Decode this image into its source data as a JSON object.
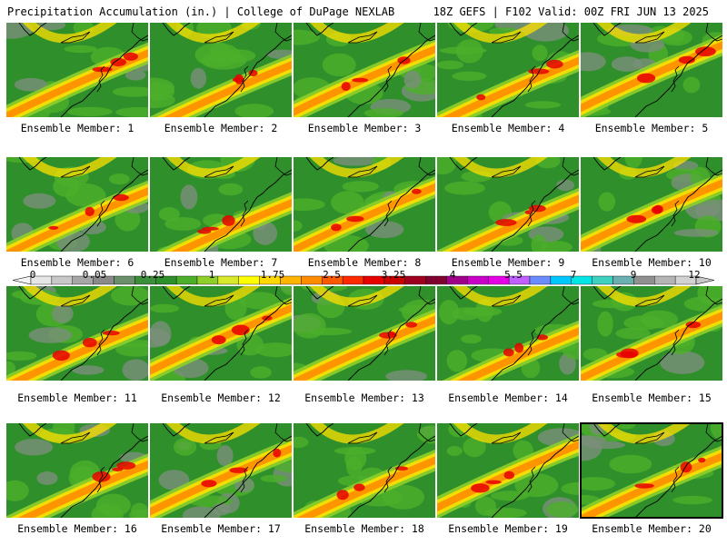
{
  "header": {
    "left": "Precipitation Accumulation (in.) | College of DuPage NEXLAB",
    "right": "18Z GEFS | F102 Valid: 00Z FRI JUN 13 2025"
  },
  "members": [
    {
      "label": "Ensemble Member: 1"
    },
    {
      "label": "Ensemble Member: 2"
    },
    {
      "label": "Ensemble Member: 3"
    },
    {
      "label": "Ensemble Member: 4"
    },
    {
      "label": "Ensemble Member: 5"
    },
    {
      "label": "Ensemble Member: 6"
    },
    {
      "label": "Ensemble Member: 7"
    },
    {
      "label": "Ensemble Member: 8"
    },
    {
      "label": "Ensemble Member: 9"
    },
    {
      "label": "Ensemble Member: 10"
    },
    {
      "label": "Ensemble Member: 11"
    },
    {
      "label": "Ensemble Member: 12"
    },
    {
      "label": "Ensemble Member: 13"
    },
    {
      "label": "Ensemble Member: 14"
    },
    {
      "label": "Ensemble Member: 15"
    },
    {
      "label": "Ensemble Member: 16"
    },
    {
      "label": "Ensemble Member: 17"
    },
    {
      "label": "Ensemble Member: 18"
    },
    {
      "label": "Ensemble Member: 19"
    },
    {
      "label": "Ensemble Member: 20"
    }
  ],
  "colorbar": {
    "labels": [
      "0",
      "0.05",
      "0.25",
      "1",
      "1.75",
      "2.5",
      "3.25",
      "4",
      "5.5",
      "7",
      "9",
      "12"
    ],
    "colors": [
      "#e6e6e6",
      "#c8c8c8",
      "#a6a6a6",
      "#8a8a8a",
      "#6a8f6a",
      "#3c8f3a",
      "#2f8f2a",
      "#4caf2a",
      "#8fcf2a",
      "#d8e82a",
      "#ffff00",
      "#ffd800",
      "#ffb400",
      "#ff8c00",
      "#ff5a00",
      "#ff2a00",
      "#e60000",
      "#c80000",
      "#a00020",
      "#800030",
      "#a0008a",
      "#c800c8",
      "#e600e6",
      "#c060ff",
      "#6a8cff",
      "#00c8ff",
      "#00e6e6",
      "#40d0c0",
      "#6ab0b0",
      "#909090",
      "#b4b4b4",
      "#d2d2d2"
    ],
    "accent_colors": {
      "green": "#2f8f2a",
      "yellow": "#ffe000",
      "orange": "#ff8c00",
      "red": "#e60000"
    }
  }
}
